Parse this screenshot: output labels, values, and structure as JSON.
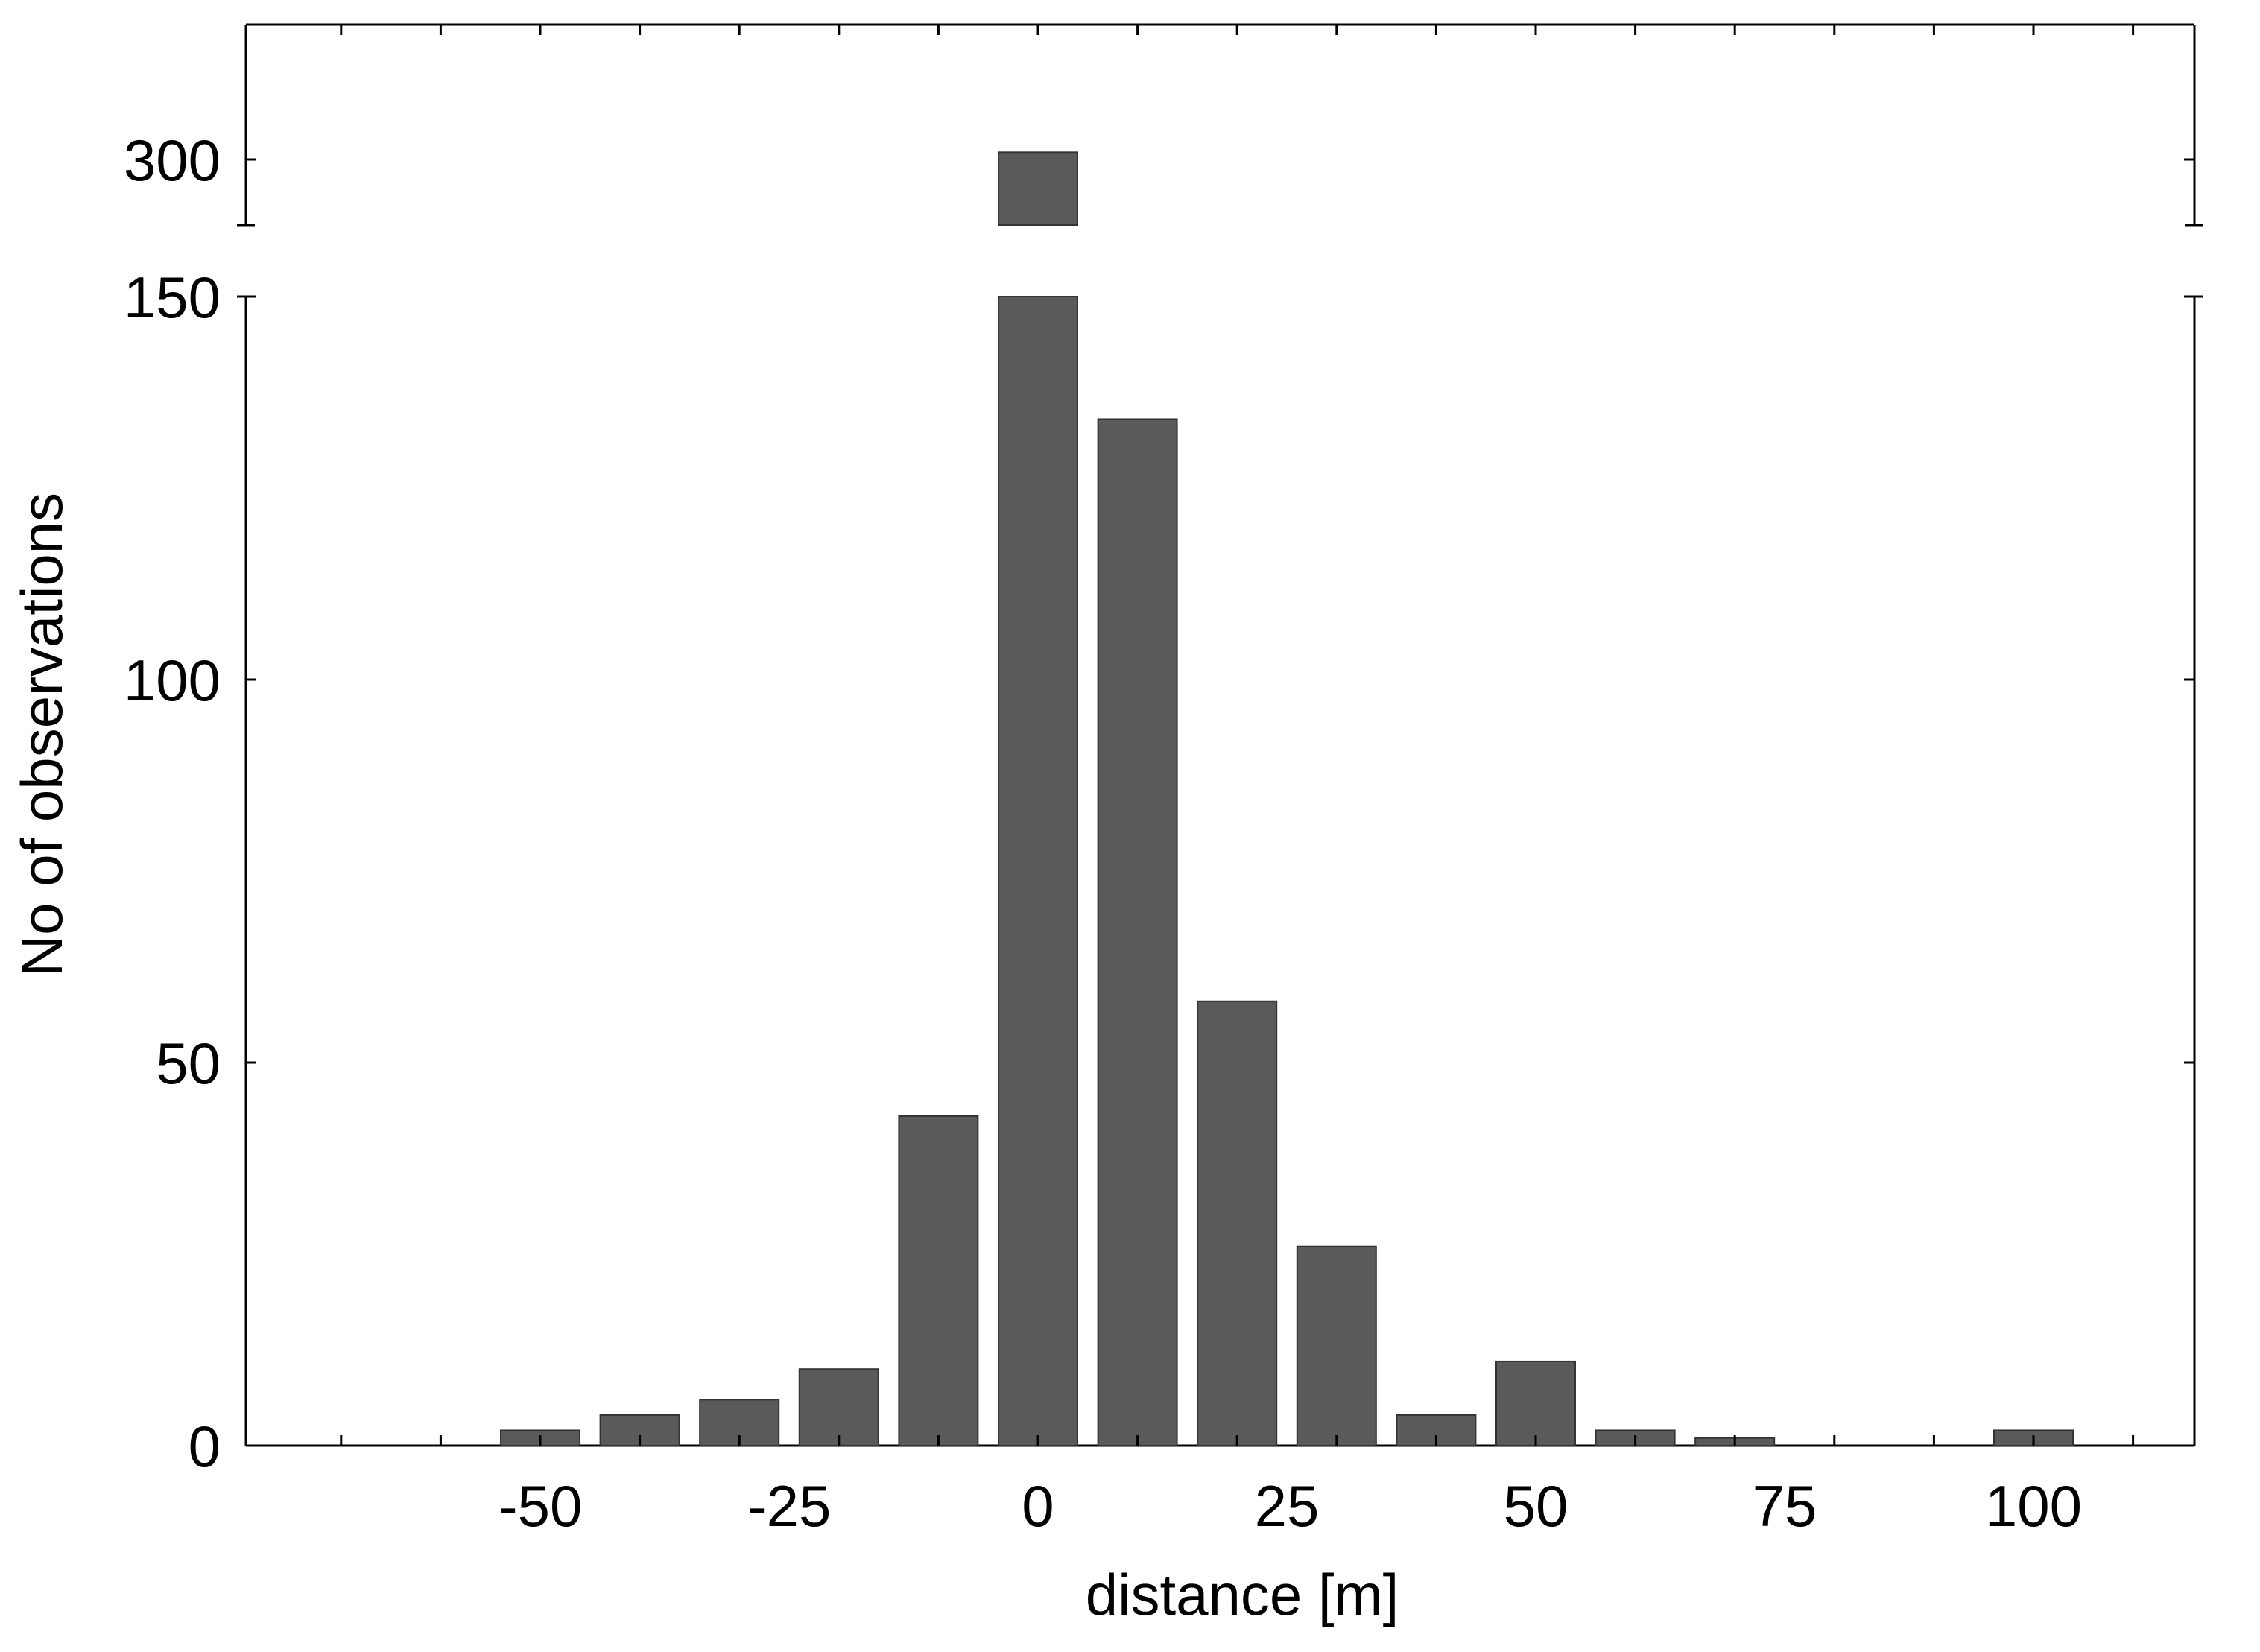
{
  "chart_data": {
    "type": "bar",
    "xlabel": "distance [m]",
    "ylabel": "No of observations",
    "broken_y_axis": true,
    "ylim_lower": [
      0,
      150
    ],
    "ylim_upper_ticks": [
      300
    ],
    "yticks_lower": [
      0,
      50,
      100,
      150
    ],
    "xticks": [
      -50,
      -25,
      0,
      25,
      50,
      75,
      100
    ],
    "xtick_labels": [
      "-50",
      "-25",
      "0",
      "25",
      "50",
      "75",
      "100"
    ],
    "ytick_labels_lower": [
      "0",
      "50",
      "100",
      "150"
    ],
    "ytick_labels_upper": [
      "300"
    ],
    "xlim": [
      -75,
      115
    ],
    "bin_width": 10,
    "bar_color": "#5a5a5a",
    "grid": false,
    "x": [
      -50,
      -40,
      -30,
      -20,
      -10,
      0,
      10,
      20,
      30,
      40,
      50,
      60,
      70,
      100
    ],
    "values": [
      2,
      4,
      6,
      10,
      43,
      305,
      134,
      58,
      26,
      4,
      11,
      2,
      1,
      2
    ]
  }
}
